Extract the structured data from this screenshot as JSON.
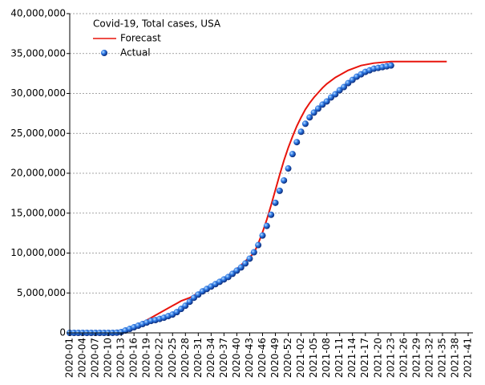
{
  "chart_data": {
    "type": "line",
    "legend_title": "Covid-19, Total cases, USA",
    "legend_position": "upper left",
    "grid": true,
    "categories": [
      "2020-01",
      null,
      null,
      "2020-04",
      null,
      null,
      "2020-07",
      null,
      null,
      "2020-10",
      null,
      null,
      "2020-13",
      null,
      null,
      "2020-16",
      null,
      null,
      "2020-19",
      null,
      null,
      "2020-22",
      null,
      null,
      "2020-25",
      null,
      null,
      "2020-28",
      null,
      null,
      "2020-31",
      null,
      null,
      "2020-34",
      null,
      null,
      "2020-37",
      null,
      null,
      "2020-40",
      null,
      null,
      "2020-43",
      null,
      null,
      "2020-46",
      null,
      null,
      "2020-49",
      null,
      null,
      "2020-52",
      null,
      null,
      "2021-02",
      null,
      null,
      "2021-05",
      null,
      null,
      "2021-08",
      null,
      null,
      "2021-11",
      null,
      null,
      "2021-14",
      null,
      null,
      "2021-17",
      null,
      null,
      "2021-20",
      null,
      null,
      "2021-23",
      null,
      null,
      "2021-26",
      null,
      null,
      "2021-29",
      null,
      null,
      "2021-32",
      null,
      null,
      "2021-35",
      null,
      null,
      "2021-38",
      null,
      null,
      "2021-41"
    ],
    "ylim": [
      0,
      40000000
    ],
    "yticks": [
      {
        "value": 0,
        "label": "0"
      },
      {
        "value": 5000000,
        "label": "5,000,000"
      },
      {
        "value": 10000000,
        "label": "10,000,000"
      },
      {
        "value": 15000000,
        "label": "15,000,000"
      },
      {
        "value": 20000000,
        "label": "20,000,000"
      },
      {
        "value": 25000000,
        "label": "25,000,000"
      },
      {
        "value": 30000000,
        "label": "30,000,000"
      },
      {
        "value": 35000000,
        "label": "35,000,000"
      },
      {
        "value": 40000000,
        "label": "40,000,000"
      }
    ],
    "series": [
      {
        "name": "Forecast",
        "color": "#e8140c",
        "style": "line",
        "values": [
          0,
          0,
          0,
          0,
          0,
          0,
          0,
          0,
          0,
          0,
          50000,
          100000,
          200000,
          350000,
          550000,
          800000,
          1050000,
          1300000,
          1600000,
          1900000,
          2200000,
          2500000,
          2800000,
          3100000,
          3400000,
          3700000,
          4000000,
          4200000,
          4400000,
          4700000,
          5000000,
          5300000,
          5600000,
          5900000,
          6200000,
          6500000,
          6800000,
          7200000,
          7600000,
          8000000,
          8500000,
          9000000,
          9500000,
          10000000,
          11200000,
          12600000,
          14200000,
          16000000,
          17900000,
          19800000,
          21600000,
          23200000,
          24600000,
          25900000,
          27000000,
          28000000,
          28800000,
          29500000,
          30100000,
          30700000,
          31200000,
          31600000,
          32000000,
          32300000,
          32600000,
          32900000,
          33100000,
          33300000,
          33500000,
          33600000,
          33700000,
          33800000,
          33850000,
          33900000,
          33950000,
          34000000,
          34000000,
          34000000,
          34000000,
          34000000,
          34000000,
          34000000,
          34000000,
          34000000,
          34000000,
          34000000,
          34000000,
          34000000,
          34000000,
          null,
          null,
          null,
          null,
          null
        ]
      },
      {
        "name": "Actual",
        "color": "#1f5fd0",
        "style": "dots",
        "values": [
          0,
          0,
          0,
          0,
          0,
          0,
          0,
          0,
          0,
          100,
          2000,
          20000,
          100000,
          300000,
          500000,
          700000,
          900000,
          1100000,
          1300000,
          1500000,
          1600000,
          1750000,
          1900000,
          2100000,
          2300000,
          2600000,
          3000000,
          3400000,
          3900000,
          4400000,
          4800000,
          5200000,
          5500000,
          5800000,
          6100000,
          6400000,
          6700000,
          7000000,
          7400000,
          7800000,
          8200000,
          8700000,
          9300000,
          10100000,
          11000000,
          12200000,
          13400000,
          14800000,
          16300000,
          17800000,
          19100000,
          20600000,
          22400000,
          23900000,
          25200000,
          26200000,
          27000000,
          27600000,
          28100000,
          28600000,
          29000000,
          29500000,
          29900000,
          30400000,
          30800000,
          31300000,
          31700000,
          32100000,
          32400000,
          32700000,
          32900000,
          33100000,
          33200000,
          33300000,
          33400000,
          33500000,
          null,
          null,
          null,
          null,
          null,
          null,
          null,
          null,
          null,
          null,
          null,
          null,
          null,
          null,
          null,
          null,
          null,
          null
        ]
      }
    ]
  }
}
